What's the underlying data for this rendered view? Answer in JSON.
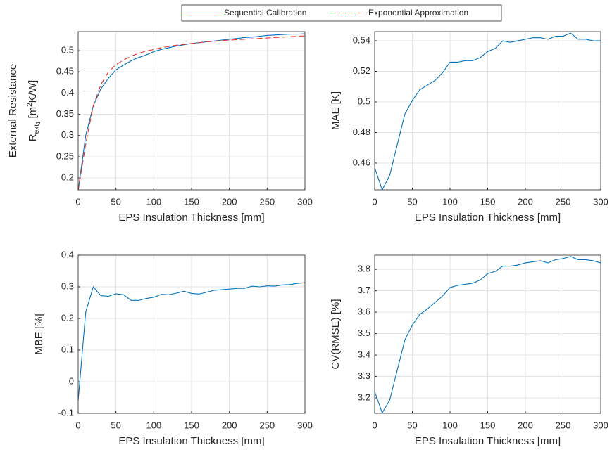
{
  "chart_data": [
    {
      "type": "line",
      "xlabel": "EPS Insulation Thickness [mm]",
      "ylabel": "External Resistance",
      "ylabel_symbol": {
        "base": "R",
        "sub": "ext",
        "subsub": "1",
        "unit_pre": "[m",
        "sup": "2",
        "unit_post": "K/W]"
      },
      "xlim": [
        0,
        300
      ],
      "xticks": [
        0,
        50,
        100,
        150,
        200,
        250,
        300
      ],
      "ylim": [
        0.172,
        0.545
      ],
      "yticks": [
        0.2,
        0.25,
        0.3,
        0.35,
        0.4,
        0.45,
        0.5
      ],
      "grid": true,
      "x": [
        0,
        10,
        20,
        30,
        40,
        50,
        60,
        70,
        80,
        90,
        100,
        110,
        120,
        130,
        140,
        150,
        160,
        170,
        180,
        190,
        200,
        210,
        220,
        230,
        240,
        250,
        260,
        270,
        280,
        290,
        300
      ],
      "series": [
        {
          "name": "Sequential Calibration",
          "color": "#0072bd",
          "dash": false,
          "values": [
            0.17,
            0.3,
            0.37,
            0.41,
            0.435,
            0.455,
            0.466,
            0.476,
            0.484,
            0.49,
            0.498,
            0.503,
            0.507,
            0.511,
            0.514,
            0.517,
            0.519,
            0.521,
            0.523,
            0.525,
            0.527,
            0.529,
            0.531,
            0.532,
            0.534,
            0.536,
            0.537,
            0.538,
            0.539,
            0.539,
            0.54
          ]
        },
        {
          "name": "Exponential Approximation",
          "color": "#e8302a",
          "dash": true,
          "values": [
            0.17,
            0.28,
            0.37,
            0.42,
            0.45,
            0.467,
            0.478,
            0.487,
            0.494,
            0.499,
            0.503,
            0.507,
            0.51,
            0.513,
            0.515,
            0.517,
            0.519,
            0.521,
            0.522,
            0.524,
            0.525,
            0.526,
            0.527,
            0.528,
            0.529,
            0.53,
            0.531,
            0.532,
            0.533,
            0.534,
            0.535
          ]
        }
      ]
    },
    {
      "type": "line",
      "xlabel": "EPS Insulation Thickness [mm]",
      "ylabel": "MAE [K]",
      "xlim": [
        0,
        300
      ],
      "xticks": [
        0,
        50,
        100,
        150,
        200,
        250,
        300
      ],
      "ylim": [
        0.4425,
        0.546
      ],
      "yticks": [
        0.46,
        0.48,
        0.5,
        0.52,
        0.54
      ],
      "grid": true,
      "x": [
        0,
        10,
        20,
        30,
        40,
        50,
        60,
        70,
        80,
        90,
        100,
        110,
        120,
        130,
        140,
        150,
        160,
        170,
        180,
        190,
        200,
        210,
        220,
        230,
        240,
        250,
        260,
        270,
        280,
        290,
        300
      ],
      "series": [
        {
          "color": "#0072bd",
          "dash": false,
          "values": [
            0.457,
            0.4425,
            0.452,
            0.472,
            0.492,
            0.501,
            0.508,
            0.511,
            0.514,
            0.519,
            0.526,
            0.526,
            0.527,
            0.527,
            0.529,
            0.533,
            0.535,
            0.54,
            0.539,
            0.54,
            0.541,
            0.542,
            0.542,
            0.541,
            0.543,
            0.543,
            0.545,
            0.541,
            0.541,
            0.54,
            0.54
          ]
        }
      ]
    },
    {
      "type": "line",
      "xlabel": "EPS Insulation Thickness [mm]",
      "ylabel": "MBE [%]",
      "xlim": [
        0,
        300
      ],
      "xticks": [
        0,
        50,
        100,
        150,
        200,
        250,
        300
      ],
      "ylim": [
        -0.1,
        0.4
      ],
      "yticks": [
        -0.1,
        0,
        0.1,
        0.2,
        0.3,
        0.4
      ],
      "grid": true,
      "x": [
        0,
        10,
        20,
        30,
        40,
        50,
        60,
        70,
        80,
        90,
        100,
        110,
        120,
        130,
        140,
        150,
        160,
        170,
        180,
        190,
        200,
        210,
        220,
        230,
        240,
        250,
        260,
        270,
        280,
        290,
        300
      ],
      "series": [
        {
          "color": "#0072bd",
          "dash": false,
          "values": [
            -0.06,
            0.22,
            0.3,
            0.272,
            0.27,
            0.278,
            0.275,
            0.257,
            0.257,
            0.263,
            0.267,
            0.276,
            0.275,
            0.28,
            0.286,
            0.279,
            0.277,
            0.283,
            0.289,
            0.291,
            0.293,
            0.295,
            0.295,
            0.302,
            0.3,
            0.303,
            0.302,
            0.306,
            0.307,
            0.311,
            0.313
          ]
        }
      ]
    },
    {
      "type": "line",
      "xlabel": "EPS Insulation Thickness [mm]",
      "ylabel": "CV(RMSE) [%]",
      "xlim": [
        0,
        300
      ],
      "xticks": [
        0,
        50,
        100,
        150,
        200,
        250,
        300
      ],
      "ylim": [
        3.128,
        3.866
      ],
      "yticks": [
        3.2,
        3.3,
        3.4,
        3.5,
        3.6,
        3.7,
        3.8
      ],
      "grid": true,
      "x": [
        0,
        10,
        20,
        30,
        40,
        50,
        60,
        70,
        80,
        90,
        100,
        110,
        120,
        130,
        140,
        150,
        160,
        170,
        180,
        190,
        200,
        210,
        220,
        230,
        240,
        250,
        260,
        270,
        280,
        290,
        300
      ],
      "series": [
        {
          "color": "#0072bd",
          "dash": false,
          "values": [
            3.23,
            3.13,
            3.19,
            3.33,
            3.47,
            3.54,
            3.59,
            3.615,
            3.645,
            3.675,
            3.715,
            3.725,
            3.73,
            3.735,
            3.75,
            3.78,
            3.79,
            3.815,
            3.815,
            3.82,
            3.83,
            3.835,
            3.84,
            3.83,
            3.845,
            3.85,
            3.86,
            3.845,
            3.845,
            3.84,
            3.83
          ]
        }
      ]
    }
  ]
}
